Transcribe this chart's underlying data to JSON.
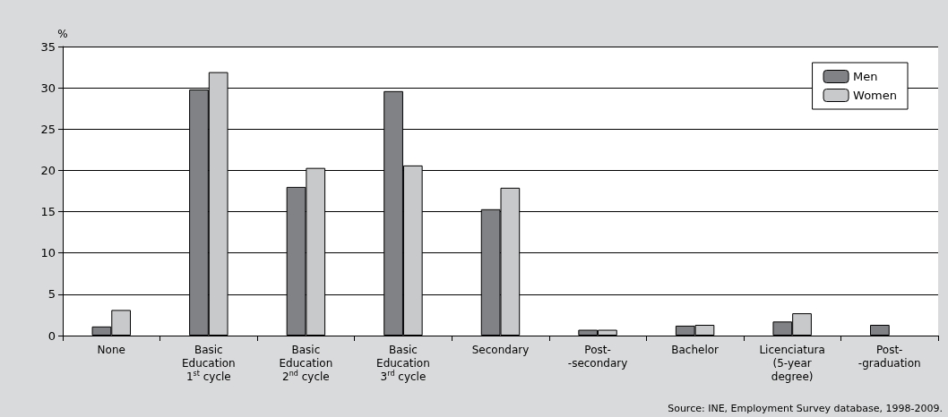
{
  "chart_data": {
    "type": "bar",
    "ylabel": "%",
    "categories": [
      "None",
      "Basic\nEducation\n1$^{st}$ cycle",
      "Basic\nEducation\n2$^{nd}$ cycle",
      "Basic\nEducation\n3$^{rd}$ cycle",
      "Secondary",
      "Post-\n-secondary",
      "Bachelor",
      "Licenciatura\n(5-year\ndegree)",
      "Post-\n-graduation"
    ],
    "series": [
      {
        "name": "Men",
        "color": "#808285",
        "values": [
          1.1,
          29.8,
          18.0,
          29.6,
          15.3,
          0.7,
          1.2,
          1.7,
          1.3
        ]
      },
      {
        "name": "Women",
        "color": "#c8c9cb",
        "values": [
          3.1,
          31.9,
          20.3,
          20.6,
          17.9,
          0.7,
          1.3,
          2.7,
          null
        ]
      }
    ],
    "ylim": [
      0,
      35
    ],
    "yticks": [
      0,
      5,
      10,
      15,
      20,
      25,
      30,
      35
    ],
    "grid": "y",
    "legend": "top right",
    "annotations": [
      "Source: INE, Employment Survey database, 1998-2009."
    ]
  }
}
